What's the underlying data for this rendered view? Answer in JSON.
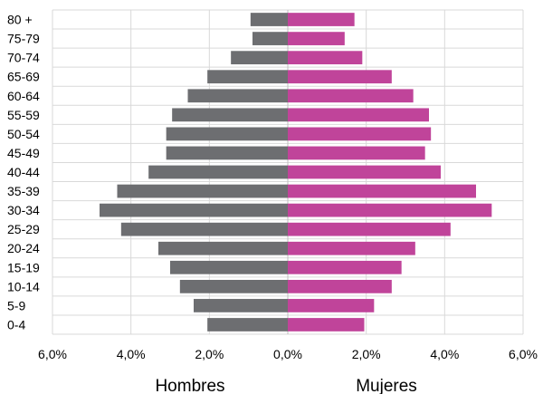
{
  "chart_data": {
    "type": "bar",
    "orientation": "horizontal",
    "chart_kind": "population-pyramid",
    "categories": [
      "80 +",
      "75-79",
      "70-74",
      "65-69",
      "60-64",
      "55-59",
      "50-54",
      "45-49",
      "40-44",
      "35-39",
      "30-34",
      "25-29",
      "20-24",
      "15-19",
      "10-14",
      "5-9",
      "0-4"
    ],
    "series": [
      {
        "name": "Hombres",
        "color": "#6d6e71",
        "values": [
          0.95,
          0.9,
          1.45,
          2.05,
          2.55,
          2.95,
          3.1,
          3.1,
          3.55,
          4.35,
          4.8,
          4.25,
          3.3,
          3.0,
          2.75,
          2.4,
          2.05
        ]
      },
      {
        "name": "Mujeres",
        "color": "#c0449a",
        "values": [
          1.7,
          1.45,
          1.9,
          2.65,
          3.2,
          3.6,
          3.65,
          3.5,
          3.9,
          4.8,
          5.2,
          4.15,
          3.25,
          2.9,
          2.65,
          2.2,
          1.95
        ]
      }
    ],
    "x_ticks": [
      "6,0%",
      "4,0%",
      "2,0%",
      "0,0%",
      "2,0%",
      "4,0%",
      "6,0%"
    ],
    "xlim": [
      -6,
      6
    ],
    "grid": true,
    "side_labels": {
      "left": "Hombres",
      "right": "Mujeres"
    }
  }
}
